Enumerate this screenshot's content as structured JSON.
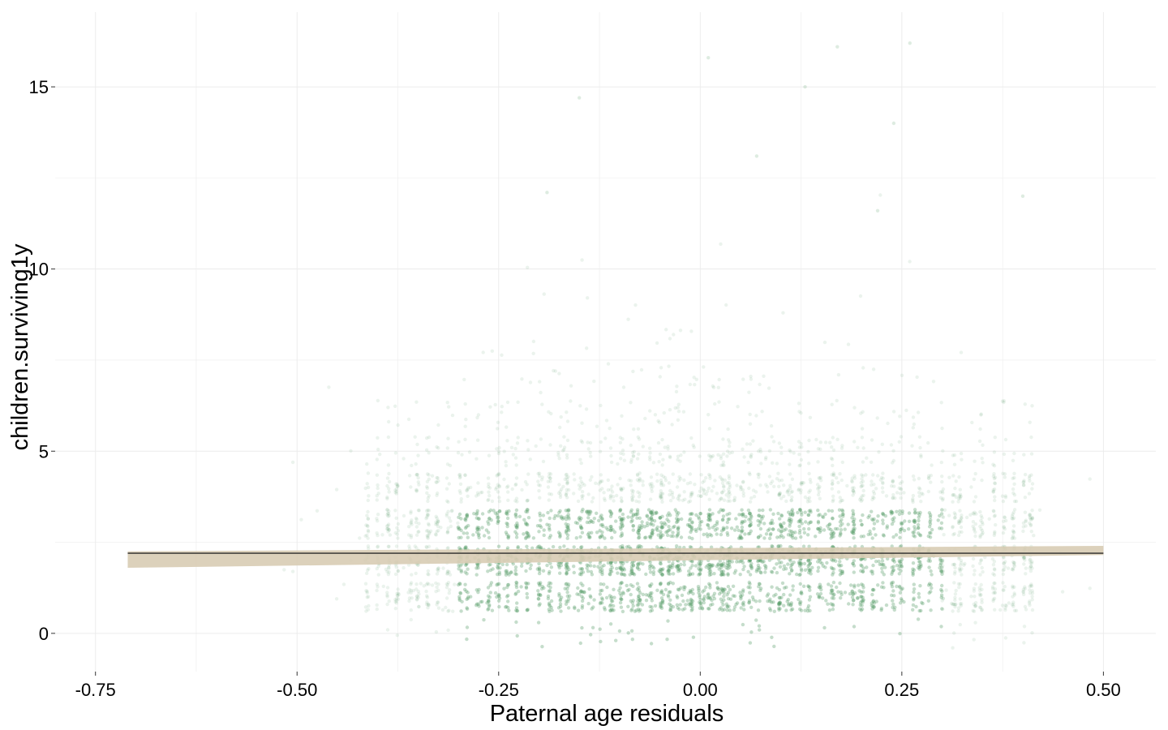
{
  "chart_data": {
    "type": "scatter",
    "title": "",
    "xlabel": "Paternal age residuals",
    "ylabel": "children.surviving1y",
    "xlim": [
      -0.8,
      0.565
    ],
    "ylim": [
      -1.05,
      17.05
    ],
    "x_ticks": [
      {
        "value": -0.75,
        "label": "-0.75"
      },
      {
        "value": -0.5,
        "label": "-0.50"
      },
      {
        "value": -0.25,
        "label": "-0.25"
      },
      {
        "value": 0.0,
        "label": "0.00"
      },
      {
        "value": 0.25,
        "label": "0.25"
      },
      {
        "value": 0.5,
        "label": "0.50"
      }
    ],
    "y_ticks": [
      {
        "value": 0,
        "label": "0"
      },
      {
        "value": 5,
        "label": "5"
      },
      {
        "value": 10,
        "label": "10"
      },
      {
        "value": 15,
        "label": "15"
      }
    ],
    "grid": true,
    "legend": "none",
    "colors": {
      "points": "#5a9e6b",
      "fit_line": "#2b2b2b",
      "confidence_band": "#d8ccb4",
      "grid": "#ececec"
    },
    "point_density_by_count": [
      {
        "count": 0,
        "approx_n": 300
      },
      {
        "count": 1,
        "approx_n": 5200
      },
      {
        "count": 2,
        "approx_n": 7200
      },
      {
        "count": 3,
        "approx_n": 6000
      },
      {
        "count": 4,
        "approx_n": 3800
      },
      {
        "count": 5,
        "approx_n": 1500
      },
      {
        "count": 6,
        "approx_n": 600
      },
      {
        "count": 7,
        "approx_n": 250
      },
      {
        "count": 8,
        "approx_n": 90
      },
      {
        "count": 9,
        "approx_n": 40
      },
      {
        "count": 10,
        "approx_n": 16
      },
      {
        "count": 11,
        "approx_n": 6
      },
      {
        "count": 12,
        "approx_n": 4
      },
      {
        "count": 13,
        "approx_n": 2
      },
      {
        "count": 14,
        "approx_n": 2
      },
      {
        "count": 15,
        "approx_n": 2
      },
      {
        "count": 16,
        "approx_n": 2
      }
    ],
    "outlier_points": [
      {
        "x": 0.13,
        "y": 15
      },
      {
        "x": 0.17,
        "y": 16.1
      },
      {
        "x": 0.26,
        "y": 16.2
      },
      {
        "x": 0.01,
        "y": 15.8
      },
      {
        "x": 0.24,
        "y": 14
      },
      {
        "x": -0.15,
        "y": 14.7
      },
      {
        "x": 0.07,
        "y": 13.1
      },
      {
        "x": -0.19,
        "y": 12.1
      },
      {
        "x": 0.4,
        "y": 12
      },
      {
        "x": 0.22,
        "y": 11.6
      }
    ],
    "fit": {
      "x": [
        -0.71,
        0.5
      ],
      "y": [
        2.2,
        2.2
      ],
      "band_lower": [
        1.8,
        2.15
      ],
      "band_upper": [
        2.25,
        2.4
      ]
    }
  }
}
